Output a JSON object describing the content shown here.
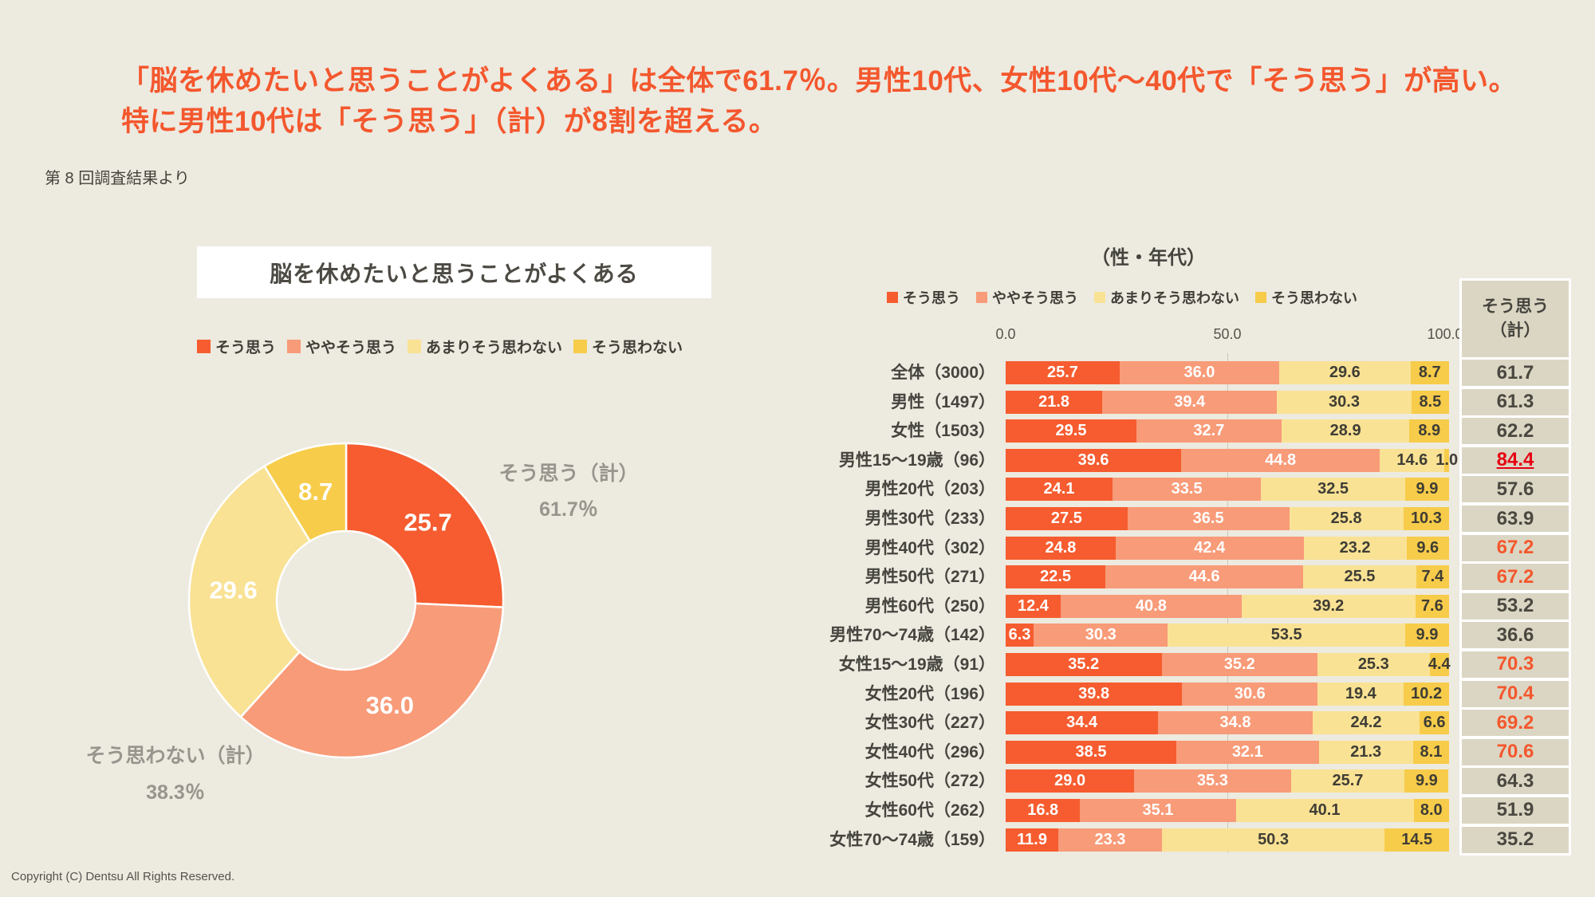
{
  "page": {
    "heading_line1": "「脳を休めたいと思うことがよくある」は全体で61.7％。男性10代、女性10代～40代で「そう思う」が高い。",
    "heading_line2": "特に男性10代は「そう思う」（計）が8割を超える。",
    "survey_note": "第 8 回調査結果より",
    "copyright": "Copyright (C) Dentsu All Rights Reserved."
  },
  "colors": {
    "background": "#EDEAE0",
    "heading": "#F4572D",
    "series": [
      "#F65C2F",
      "#F89B78",
      "#F9E294",
      "#F7CC4A"
    ],
    "panel": "#DBD6C3",
    "total_high": "#F4572D",
    "total_highest": "#E60012"
  },
  "legend": {
    "items": [
      "そう思う",
      "ややそう思う",
      "あまりそう思わない",
      "そう思わない"
    ]
  },
  "left_chart": {
    "title": "脳を休めたいと思うことがよくある",
    "agree_label": "そう思う（計）",
    "agree_value": "61.7％",
    "disagree_label": "そう思わない（計）",
    "disagree_value": "38.3％"
  },
  "right_chart": {
    "title": "（性・年代）",
    "axis_ticks": [
      "0.0",
      "50.0",
      "100.0"
    ],
    "total_header_line1": "そう思う",
    "total_header_line2": "（計）"
  },
  "chart_data": [
    {
      "type": "pie",
      "subtype": "donut",
      "title": "脳を休めたいと思うことがよくある",
      "labels": [
        "そう思う",
        "ややそう思う",
        "あまりそう思わない",
        "そう思わない"
      ],
      "values": [
        25.7,
        36.0,
        29.6,
        8.7
      ],
      "annotations": [
        {
          "label": "そう思う（計）",
          "value": "61.7％"
        },
        {
          "label": "そう思わない（計）",
          "value": "38.3％"
        }
      ]
    },
    {
      "type": "bar",
      "subtype": "horizontal-stacked",
      "title": "（性・年代）",
      "xlim": [
        0,
        100
      ],
      "x_ticks": [
        0.0,
        50.0,
        100.0
      ],
      "grid": "50-percent-line",
      "legend_position": "top",
      "total_column_header": "そう思う（計）",
      "categories": [
        "全体（3000）",
        "男性（1497）",
        "女性（1503）",
        "男性15～19歳（96）",
        "男性20代（203）",
        "男性30代（233）",
        "男性40代（302）",
        "男性50代（271）",
        "男性60代（250）",
        "男性70～74歳（142）",
        "女性15～19歳（91）",
        "女性20代（196）",
        "女性30代（227）",
        "女性40代（296）",
        "女性50代（272）",
        "女性60代（262）",
        "女性70～74歳（159）"
      ],
      "series": [
        {
          "name": "そう思う",
          "values": [
            25.7,
            21.8,
            29.5,
            39.6,
            24.1,
            27.5,
            24.8,
            22.5,
            12.4,
            6.3,
            35.2,
            39.8,
            34.4,
            38.5,
            29.0,
            16.8,
            11.9
          ]
        },
        {
          "name": "ややそう思う",
          "values": [
            36.0,
            39.4,
            32.7,
            44.8,
            33.5,
            36.5,
            42.4,
            44.6,
            40.8,
            30.3,
            35.2,
            30.6,
            34.8,
            32.1,
            35.3,
            35.1,
            23.3
          ]
        },
        {
          "name": "あまりそう思わない",
          "values": [
            29.6,
            30.3,
            28.9,
            14.6,
            32.5,
            25.8,
            23.2,
            25.5,
            39.2,
            53.5,
            25.3,
            19.4,
            24.2,
            21.3,
            25.7,
            40.1,
            50.3
          ]
        },
        {
          "name": "そう思わない",
          "values": [
            8.7,
            8.5,
            8.9,
            1.0,
            9.9,
            10.3,
            9.6,
            7.4,
            7.6,
            9.9,
            4.4,
            10.2,
            6.6,
            8.1,
            9.9,
            8.0,
            14.5
          ]
        }
      ],
      "totals": [
        61.7,
        61.3,
        62.2,
        84.4,
        57.6,
        63.9,
        67.2,
        67.2,
        53.2,
        36.6,
        70.3,
        70.4,
        69.2,
        70.6,
        64.3,
        51.9,
        35.2
      ],
      "total_emphasis": [
        "normal",
        "normal",
        "normal",
        "highest",
        "normal",
        "normal",
        "high",
        "high",
        "normal",
        "normal",
        "high",
        "high",
        "high",
        "high",
        "normal",
        "normal",
        "normal"
      ]
    }
  ]
}
